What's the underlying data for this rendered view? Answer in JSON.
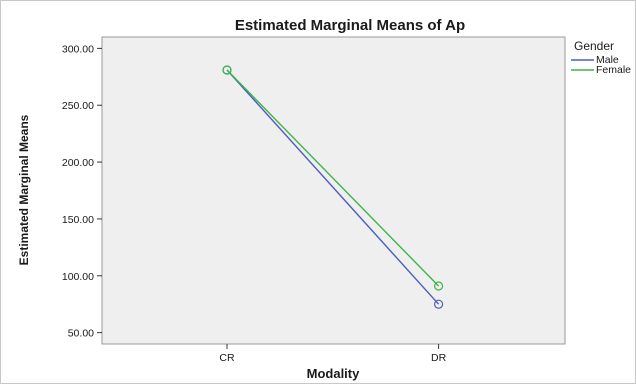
{
  "chart_data": {
    "type": "line",
    "title": "Estimated Marginal Means of Ap",
    "xlabel": "Modality",
    "ylabel": "Estimated Marginal Means",
    "categories": [
      "CR",
      "DR"
    ],
    "ylim": [
      40,
      310
    ],
    "yticks": [
      "50.00",
      "100.00",
      "150.00",
      "200.00",
      "250.00",
      "300.00"
    ],
    "ytick_values": [
      50,
      100,
      150,
      200,
      250,
      300
    ],
    "grid": false,
    "legend": {
      "title": "Gender",
      "placement": "right"
    },
    "plot_background": "#efefef",
    "series": [
      {
        "name": "Male",
        "values": [
          281,
          75
        ],
        "color": "#4c5dbf"
      },
      {
        "name": "Female",
        "values": [
          281,
          91
        ],
        "color": "#3fb54a"
      }
    ]
  }
}
